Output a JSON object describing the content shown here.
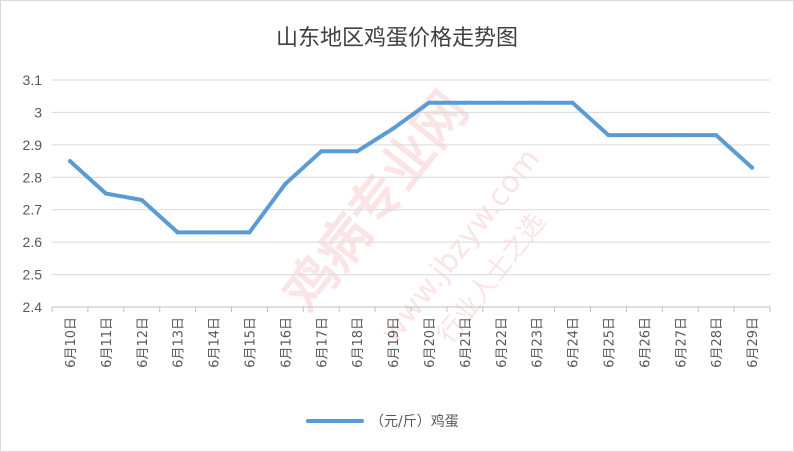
{
  "chart_data": {
    "type": "line",
    "title": "山东地区鸡蛋价格走势图",
    "xlabel": "",
    "ylabel": "",
    "categories": [
      "6月10日",
      "6月11日",
      "6月12日",
      "6月13日",
      "6月14日",
      "6月15日",
      "6月16日",
      "6月17日",
      "6月18日",
      "6月19日",
      "6月20日",
      "6月21日",
      "6月22日",
      "6月23日",
      "6月24日",
      "6月25日",
      "6月26日",
      "6月27日",
      "6月28日",
      "6月29日"
    ],
    "series": [
      {
        "name": "（元/斤）鸡蛋",
        "values": [
          2.85,
          2.75,
          2.73,
          2.63,
          2.63,
          2.63,
          2.78,
          2.88,
          2.88,
          2.95,
          3.03,
          3.03,
          3.03,
          3.03,
          3.03,
          2.93,
          2.93,
          2.93,
          2.93,
          2.83
        ],
        "color": "#5b9bd5"
      }
    ],
    "ylim": [
      2.4,
      3.1
    ],
    "yticks": [
      2.4,
      2.5,
      2.6,
      2.7,
      2.8,
      2.9,
      3,
      3.1
    ],
    "ytick_labels": [
      "2.4",
      "2.5",
      "2.6",
      "2.7",
      "2.8",
      "2.9",
      "3",
      "3.1"
    ],
    "grid": true,
    "legend_position": "bottom"
  },
  "watermark": {
    "main": "鸡病专业网",
    "url": "www.jbzyw.com",
    "slogan": "行业人士之选"
  }
}
